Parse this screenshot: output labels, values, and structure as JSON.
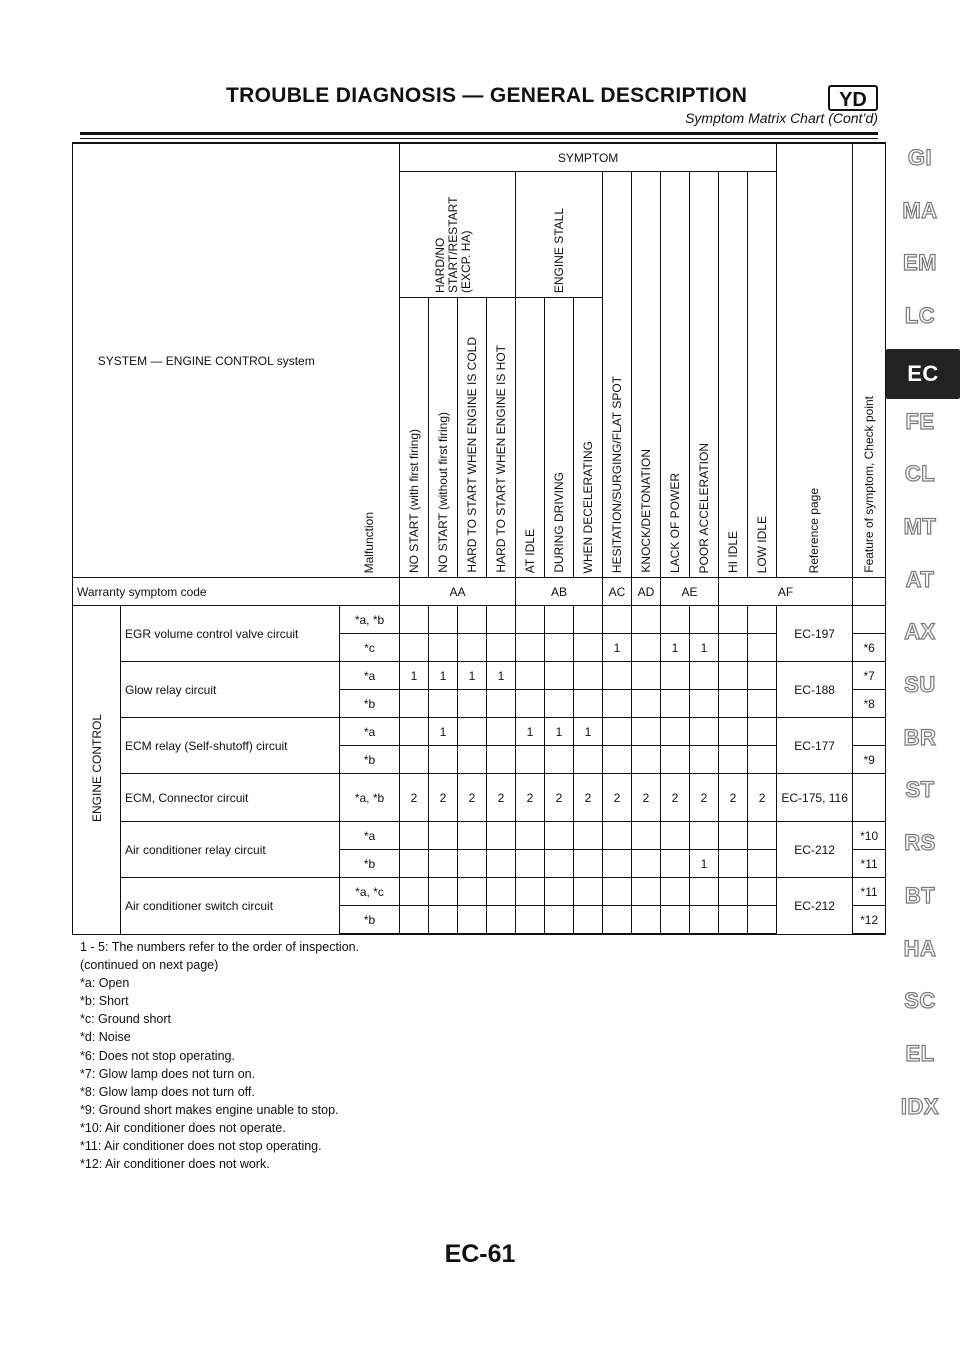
{
  "header": {
    "title": "TROUBLE DIAGNOSIS — GENERAL DESCRIPTION",
    "code": "YD",
    "subtitle": "Symptom Matrix Chart (Cont’d)"
  },
  "matrix": {
    "system_label": "SYSTEM — ENGINE CONTROL system",
    "malfunction_label": "Malfunction",
    "symptom_label": "SYMPTOM",
    "group_hard_start": "HARD/NO START/RESTART (EXCP. HA)",
    "group_stall": "ENGINE STALL",
    "columns": [
      "NO START (with first firing)",
      "NO START (without first firing)",
      "HARD TO START WHEN ENGINE IS COLD",
      "HARD TO START WHEN ENGINE IS HOT",
      "AT IDLE",
      "DURING DRIVING",
      "WHEN DECELERATING",
      "HESITATION/SURGING/FLAT SPOT",
      "KNOCK/DETONATION",
      "LACK OF POWER",
      "POOR ACCELERATION",
      "HI IDLE",
      "LOW IDLE"
    ],
    "reference_label": "Reference page",
    "feature_label": "Feature of symptom, Check point",
    "warranty_label": "Warranty symptom code",
    "codes": [
      "AA",
      "AB",
      "AC",
      "AD",
      "AE",
      "AF"
    ],
    "category": "ENGINE CONTROL",
    "rows": [
      {
        "system": "EGR volume control valve circuit",
        "mal": "*a, *b",
        "cells": [
          "",
          "",
          "",
          "",
          "",
          "",
          "",
          "",
          "",
          "",
          "",
          "",
          ""
        ],
        "ref": "EC-197",
        "feature": ""
      },
      {
        "system": "",
        "mal": "*c",
        "cells": [
          "",
          "",
          "",
          "",
          "",
          "",
          "",
          "1",
          "",
          "1",
          "1",
          "",
          ""
        ],
        "ref": "",
        "feature": "*6"
      },
      {
        "system": "Glow relay circuit",
        "mal": "*a",
        "cells": [
          "1",
          "1",
          "1",
          "1",
          "",
          "",
          "",
          "",
          "",
          "",
          "",
          "",
          ""
        ],
        "ref": "EC-188",
        "feature": "*7"
      },
      {
        "system": "",
        "mal": "*b",
        "cells": [
          "",
          "",
          "",
          "",
          "",
          "",
          "",
          "",
          "",
          "",
          "",
          "",
          ""
        ],
        "ref": "",
        "feature": "*8"
      },
      {
        "system": "ECM relay (Self-shutoff) circuit",
        "mal": "*a",
        "cells": [
          "",
          "1",
          "",
          "",
          "1",
          "1",
          "1",
          "",
          "",
          "",
          "",
          "",
          ""
        ],
        "ref": "EC-177",
        "feature": ""
      },
      {
        "system": "",
        "mal": "*b",
        "cells": [
          "",
          "",
          "",
          "",
          "",
          "",
          "",
          "",
          "",
          "",
          "",
          "",
          ""
        ],
        "ref": "",
        "feature": "*9"
      },
      {
        "system": "ECM, Connector circuit",
        "mal": "*a, *b",
        "cells": [
          "2",
          "2",
          "2",
          "2",
          "2",
          "2",
          "2",
          "2",
          "2",
          "2",
          "2",
          "2",
          "2"
        ],
        "ref": "EC-175, 116",
        "feature": ""
      },
      {
        "system": "Air conditioner relay circuit",
        "mal": "*a",
        "cells": [
          "",
          "",
          "",
          "",
          "",
          "",
          "",
          "",
          "",
          "",
          "",
          "",
          ""
        ],
        "ref": "EC-212",
        "feature": "*10"
      },
      {
        "system": "",
        "mal": "*b",
        "cells": [
          "",
          "",
          "",
          "",
          "",
          "",
          "",
          "",
          "",
          "",
          "1",
          "",
          ""
        ],
        "ref": "",
        "feature": "*11"
      },
      {
        "system": "Air conditioner switch circuit",
        "mal": "*a, *c",
        "cells": [
          "",
          "",
          "",
          "",
          "",
          "",
          "",
          "",
          "",
          "",
          "",
          "",
          ""
        ],
        "ref": "EC-212",
        "feature": "*11"
      },
      {
        "system": "",
        "mal": "*b",
        "cells": [
          "",
          "",
          "",
          "",
          "",
          "",
          "",
          "",
          "",
          "",
          "",
          "",
          ""
        ],
        "ref": "",
        "feature": "*12"
      }
    ]
  },
  "notes": [
    "1 - 5: The numbers refer to the order of inspection.",
    "(continued on next page)",
    "*a: Open",
    "*b: Short",
    "*c: Ground short",
    "*d: Noise",
    "*6: Does not stop operating.",
    "*7: Glow lamp does not turn on.",
    "*8: Glow lamp does not turn off.",
    "*9: Ground short makes engine unable to stop.",
    "*10: Air conditioner does not operate.",
    "*11: Air conditioner does not stop operating.",
    "*12: Air conditioner does not work."
  ],
  "side_tabs": [
    "GI",
    "MA",
    "EM",
    "LC",
    "EC",
    "FE",
    "CL",
    "MT",
    "AT",
    "AX",
    "SU",
    "BR",
    "ST",
    "RS",
    "BT",
    "HA",
    "SC",
    "EL",
    "IDX"
  ],
  "active_tab": "EC",
  "page_number": "EC-61"
}
